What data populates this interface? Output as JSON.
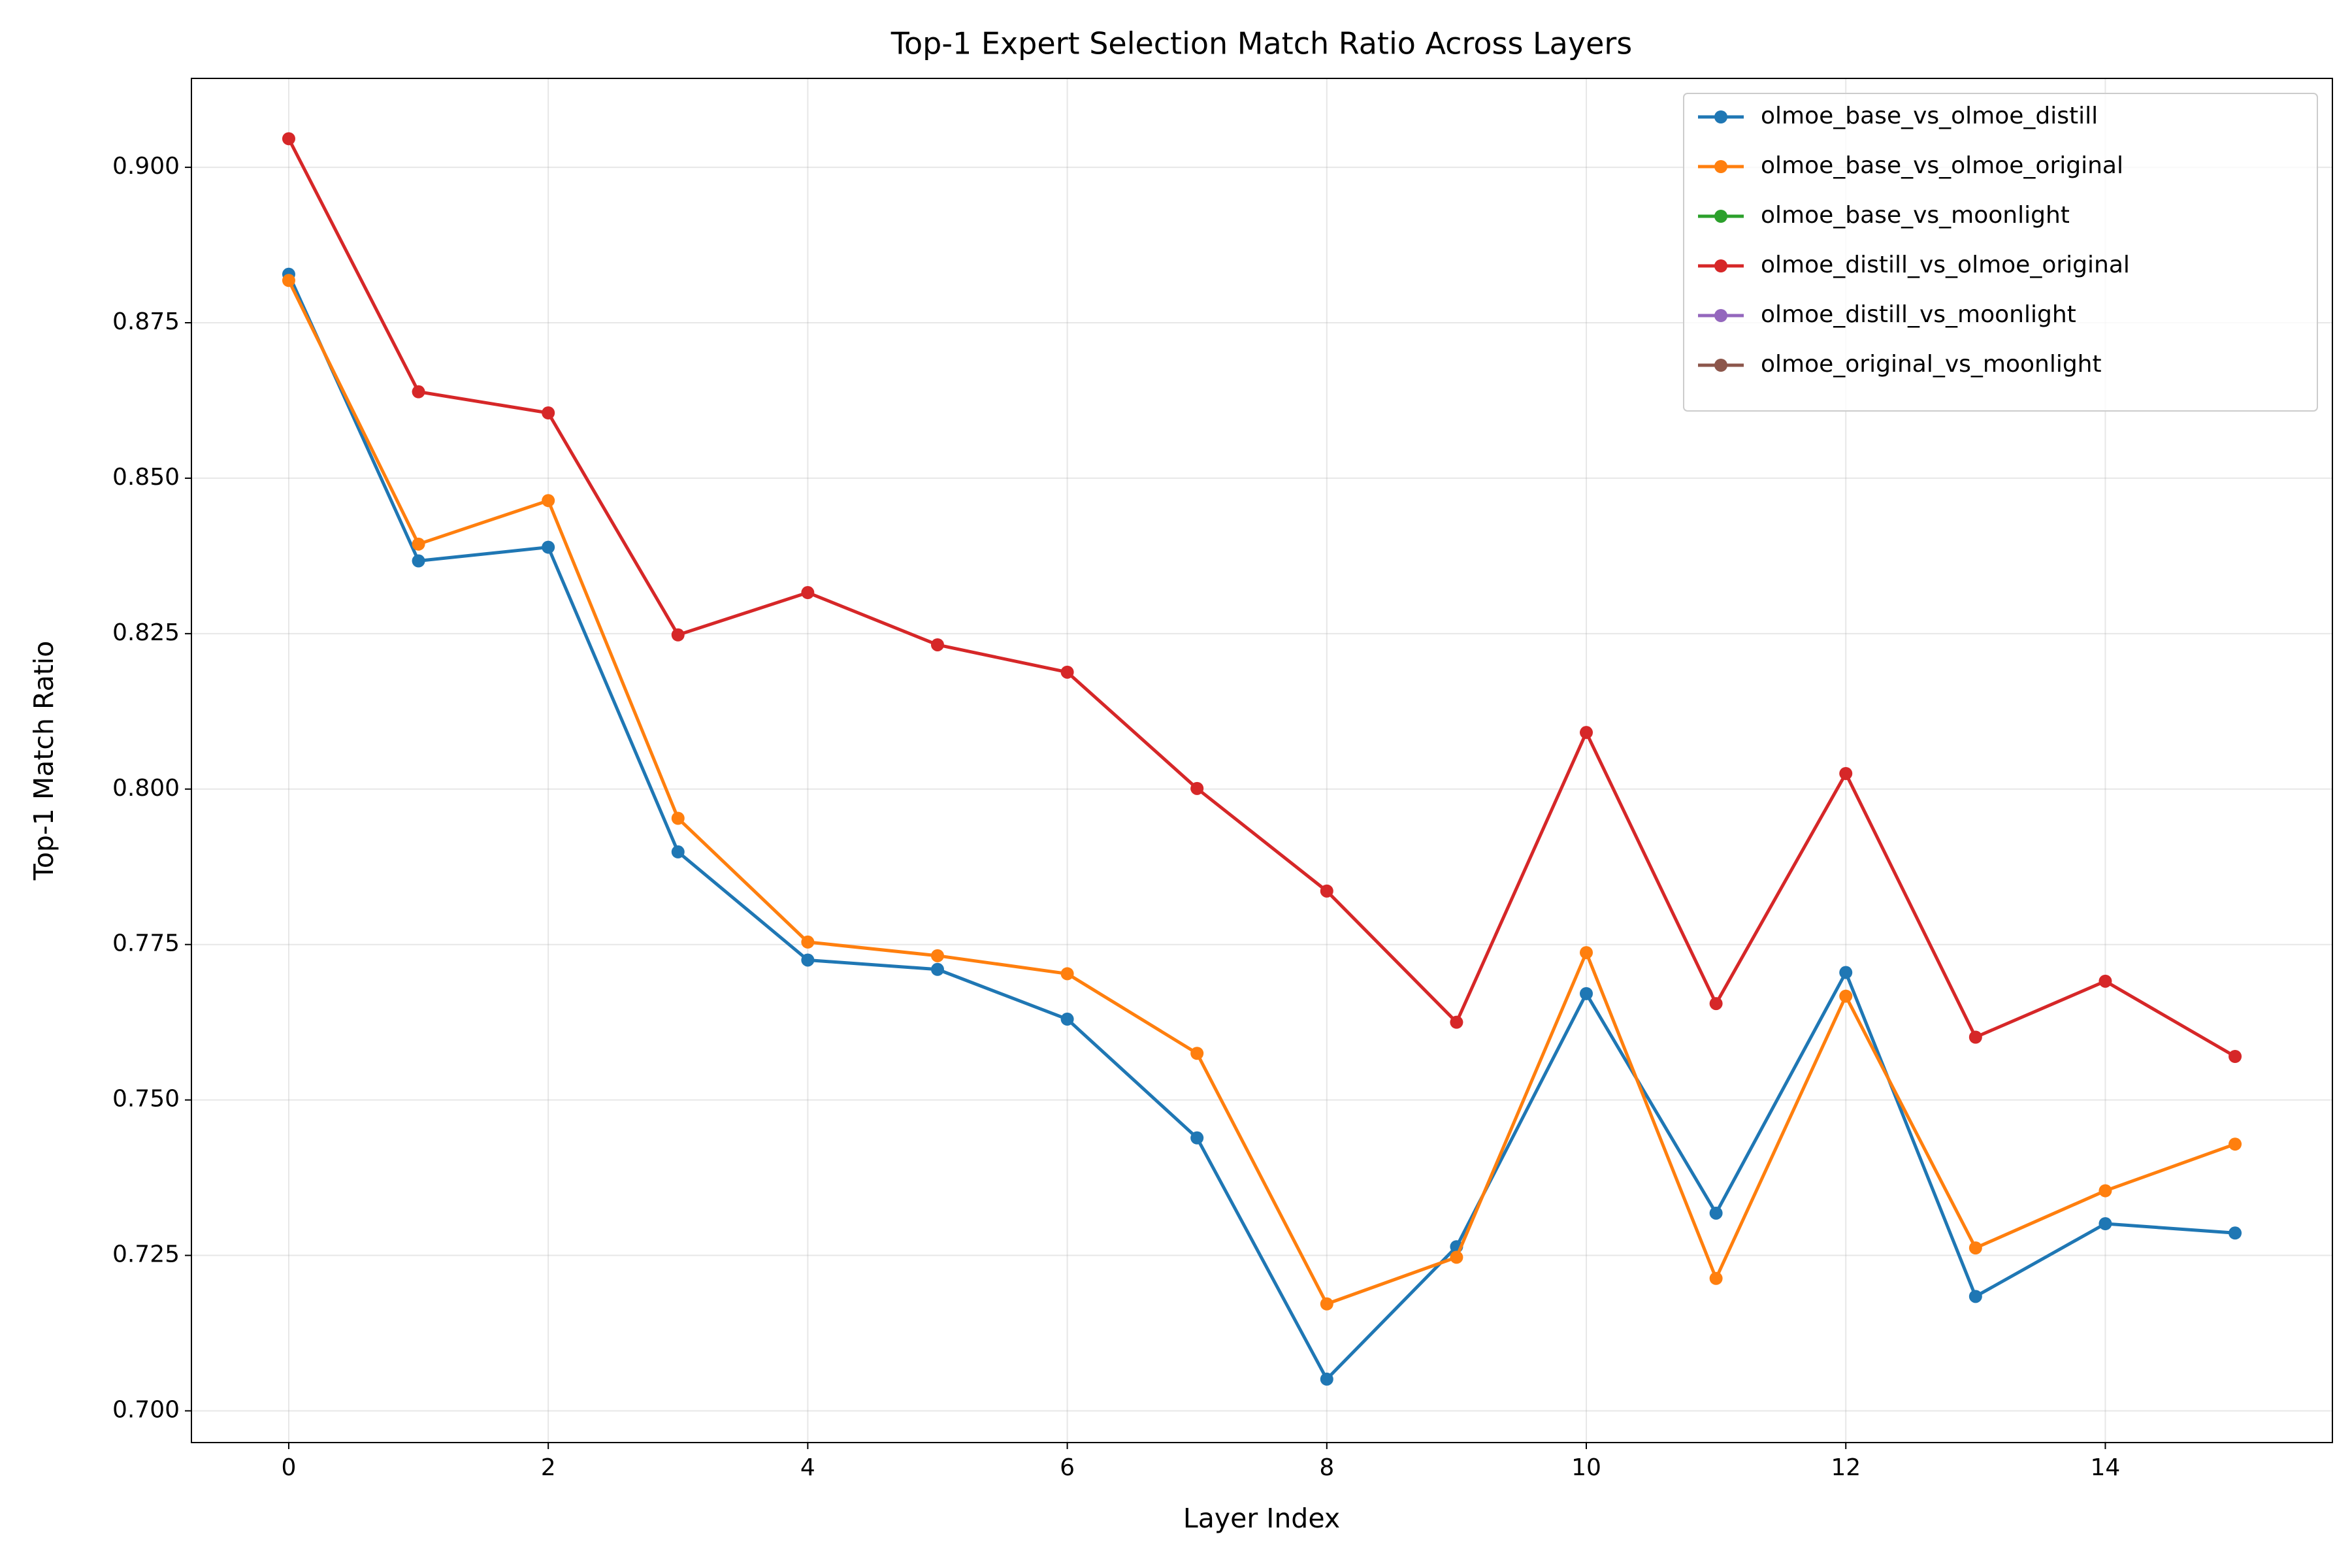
{
  "chart_data": {
    "type": "line",
    "title": "Top-1 Expert Selection Match Ratio Across Layers",
    "xlabel": "Layer Index",
    "ylabel": "Top-1 Match Ratio",
    "x": [
      0,
      1,
      2,
      3,
      4,
      5,
      6,
      7,
      8,
      9,
      10,
      11,
      12,
      13,
      14,
      15
    ],
    "series": [
      {
        "name": "olmoe_base_vs_olmoe_distill",
        "color": "#1f77b4",
        "values": [
          0.8828,
          0.8367,
          0.8389,
          0.7899,
          0.7725,
          0.771,
          0.763,
          0.7439,
          0.7051,
          0.7264,
          0.7671,
          0.7318,
          0.7705,
          0.7184,
          0.7301,
          0.7286
        ]
      },
      {
        "name": "olmoe_base_vs_olmoe_original",
        "color": "#ff7f0e",
        "values": [
          0.8818,
          0.8394,
          0.8464,
          0.7953,
          0.7754,
          0.7732,
          0.7703,
          0.7575,
          0.7172,
          0.7247,
          0.7737,
          0.7213,
          0.7667,
          0.7262,
          0.7354,
          0.7429
        ]
      },
      {
        "name": "olmoe_base_vs_moonlight",
        "color": "#2ca02c",
        "values": [
          null,
          null,
          null,
          null,
          null,
          null,
          null,
          null,
          null,
          null,
          null,
          null,
          null,
          null,
          null,
          null
        ]
      },
      {
        "name": "olmoe_distill_vs_olmoe_original",
        "color": "#d62728",
        "values": [
          0.9046,
          0.8639,
          0.8605,
          0.8248,
          0.8316,
          0.8232,
          0.8188,
          0.8001,
          0.7836,
          0.7625,
          0.8091,
          0.7655,
          0.8025,
          0.7601,
          0.7691,
          0.757
        ]
      },
      {
        "name": "olmoe_distill_vs_moonlight",
        "color": "#9467bd",
        "values": [
          null,
          null,
          null,
          null,
          null,
          null,
          null,
          null,
          null,
          null,
          null,
          null,
          null,
          null,
          null,
          null
        ]
      },
      {
        "name": "olmoe_original_vs_moonlight",
        "color": "#8c564b",
        "values": [
          null,
          null,
          null,
          null,
          null,
          null,
          null,
          null,
          null,
          null,
          null,
          null,
          null,
          null,
          null,
          null
        ]
      }
    ],
    "xlim": [
      -0.75,
      15.75
    ],
    "xticks": [
      0,
      2,
      4,
      6,
      8,
      10,
      12,
      14
    ],
    "ylim": [
      0.6949,
      0.9143
    ],
    "yticks": [
      {
        "value": 0.7,
        "label": "0.700"
      },
      {
        "value": 0.725,
        "label": "0.725"
      },
      {
        "value": 0.75,
        "label": "0.750"
      },
      {
        "value": 0.775,
        "label": "0.775"
      },
      {
        "value": 0.8,
        "label": "0.800"
      },
      {
        "value": 0.825,
        "label": "0.825"
      },
      {
        "value": 0.85,
        "label": "0.850"
      },
      {
        "value": 0.875,
        "label": "0.875"
      },
      {
        "value": 0.9,
        "label": "0.900"
      }
    ],
    "grid": true,
    "legend": "upper right"
  }
}
